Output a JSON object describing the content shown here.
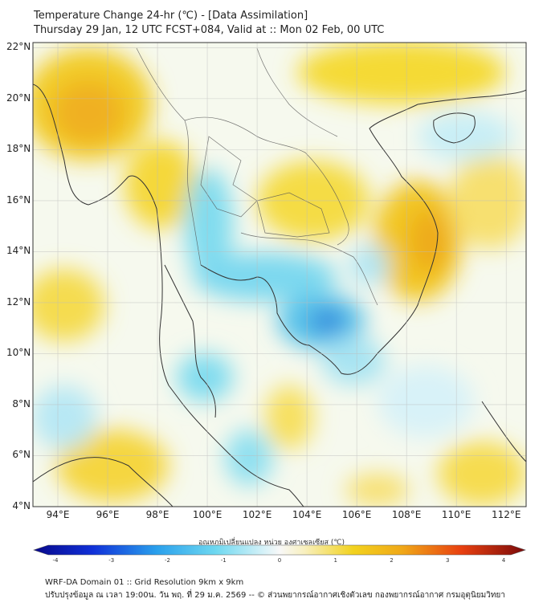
{
  "title_line1": "Temperature Change 24-hr (℃) - [Data Assimilation]",
  "title_line2": "Thursday 29 Jan, 12 UTC FCST+084, Valid at :: Mon 02 Feb, 00 UTC",
  "lat_labels": [
    "22°N",
    "20°N",
    "18°N",
    "16°N",
    "14°N",
    "12°N",
    "10°N",
    "8°N",
    "6°N",
    "4°N"
  ],
  "lon_labels": [
    "94°E",
    "96°E",
    "98°E",
    "100°E",
    "102°E",
    "104°E",
    "106°E",
    "108°E",
    "110°E",
    "112°E"
  ],
  "lat_values": [
    22,
    20,
    18,
    16,
    14,
    12,
    10,
    8,
    6,
    4
  ],
  "lon_values": [
    94,
    96,
    98,
    100,
    102,
    104,
    106,
    108,
    110,
    112
  ],
  "colorbar": {
    "label": "อุณหภูมิเปลี่ยนแปลง หน่วย องศาเซลเซียส (℃)",
    "ticks": [
      "-4",
      "-3",
      "-2",
      "-1",
      "0",
      "1",
      "2",
      "3",
      "4"
    ],
    "tick_values": [
      -4,
      -3,
      -2,
      -1,
      0,
      1,
      2,
      3,
      4
    ],
    "min": -4,
    "max": 4
  },
  "footer_line1": "WRF-DA Domain 01 :: Grid Resolution 9km x 9km",
  "footer_line2": "ปรับปรุงข้อมูล ณ เวลา 19:00น. วัน พฤ. ที่ 29 ม.ค. 2569 -- © ส่วนพยากรณ์อากาศเชิงตัวเลข กองพยากรณ์อากาศ กรมอุตุนิยมวิทยา",
  "colors": {
    "warm": "#f2d21e",
    "warm_strong": "#f0a818",
    "cool": "#6ed8f0",
    "cool_strong": "#2e8ae0",
    "neutral": "#f4f8fb"
  }
}
